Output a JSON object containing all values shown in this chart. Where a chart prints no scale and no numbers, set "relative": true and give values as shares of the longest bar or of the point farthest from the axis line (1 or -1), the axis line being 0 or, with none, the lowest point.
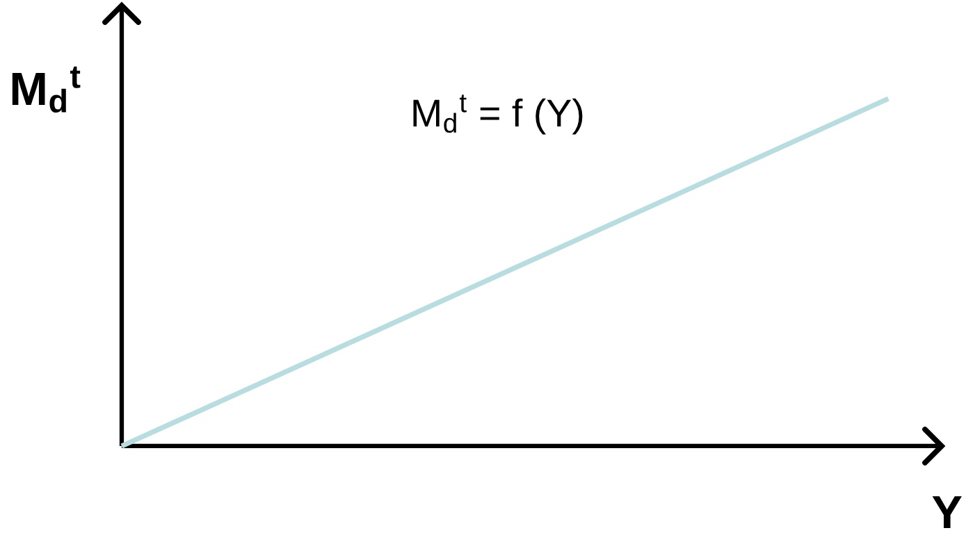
{
  "chart_data": {
    "type": "line",
    "relative": true,
    "ylabel": "M$_{d}$$^{t}$",
    "xlabel": "Y",
    "annotations": [
      "M$_{d}$$^{t}$ = f (Y)"
    ],
    "categories": [
      null,
      null
    ],
    "series": [
      {
        "color": "#b7dde0",
        "values": [
          0,
          1
        ]
      }
    ]
  }
}
